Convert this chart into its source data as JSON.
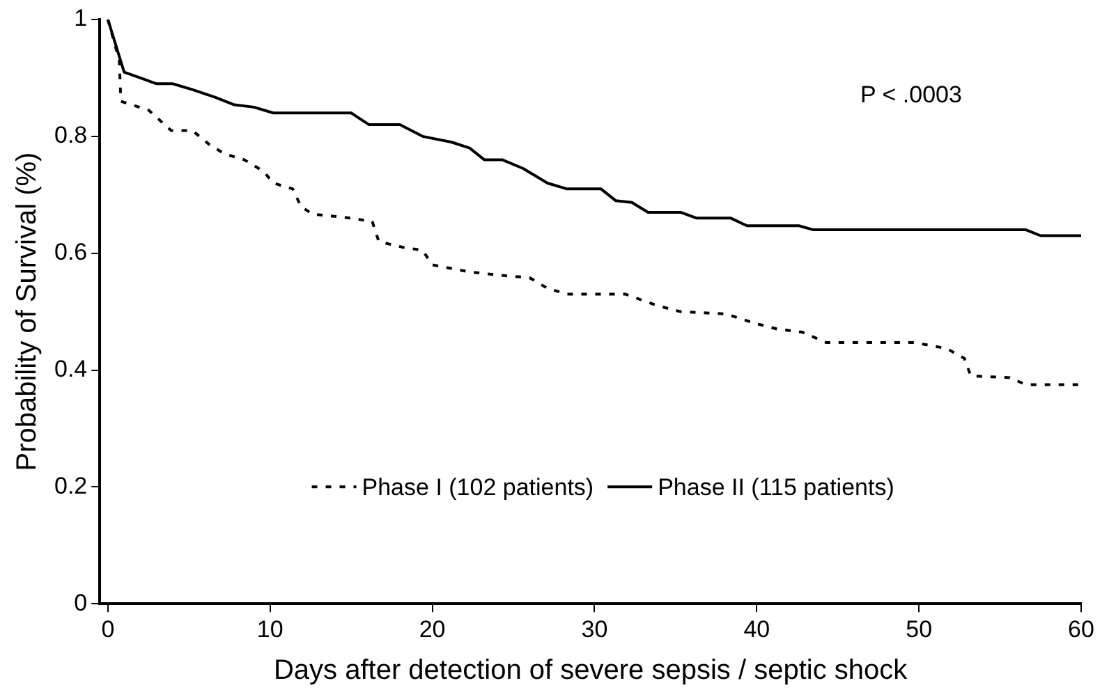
{
  "chart_data": {
    "type": "line",
    "xlabel": "Days after detection of severe sepsis / septic shock",
    "ylabel": "Probability of Survival (%)",
    "xlim": [
      -0.5,
      60
    ],
    "xticks": [
      0,
      10,
      20,
      30,
      40,
      50,
      60
    ],
    "ylim": [
      0,
      1
    ],
    "yticks": [
      0,
      0.2,
      0.4,
      0.6,
      0.8,
      1
    ],
    "grid": false,
    "legend": "bottom",
    "marker": "none",
    "annotations": [
      "P < .0003"
    ],
    "series": [
      {
        "name": "Phase I (102 patients)",
        "color": "#000000",
        "line_style": "dotted",
        "x": [
          0,
          0.7,
          0.8,
          2.5,
          3.9,
          5.2,
          6.3,
          7.2,
          8.4,
          9.6,
          10.2,
          11.4,
          11.9,
          12.6,
          15,
          16.3,
          16.7,
          18.2,
          19.4,
          20,
          22.3,
          23.9,
          26,
          27.1,
          28.3,
          31.9,
          33.9,
          35.3,
          38.1,
          39.9,
          41.3,
          42.8,
          44.3,
          49.7,
          51.7,
          52.8,
          53.2,
          55.6,
          56.6,
          60
        ],
        "values": [
          1,
          0.93,
          0.86,
          0.845,
          0.81,
          0.81,
          0.785,
          0.77,
          0.76,
          0.74,
          0.72,
          0.71,
          0.68,
          0.667,
          0.66,
          0.654,
          0.62,
          0.61,
          0.605,
          0.58,
          0.568,
          0.563,
          0.558,
          0.54,
          0.53,
          0.53,
          0.51,
          0.5,
          0.496,
          0.48,
          0.47,
          0.465,
          0.447,
          0.447,
          0.437,
          0.42,
          0.39,
          0.387,
          0.375,
          0.375
        ]
      },
      {
        "name": "Phase II (115 patients)",
        "color": "#000000",
        "line_style": "solid",
        "x": [
          0,
          1,
          2,
          3,
          4,
          5.2,
          6.6,
          7.8,
          9,
          10.2,
          15,
          16.1,
          18,
          19.4,
          21.2,
          22.3,
          23.2,
          24.3,
          25.6,
          27.1,
          28.3,
          30.4,
          31.3,
          32.3,
          33.3,
          35.3,
          36.3,
          38.4,
          39.4,
          42.6,
          43.5,
          56.6,
          57.5,
          60
        ],
        "values": [
          1,
          0.91,
          0.9,
          0.89,
          0.89,
          0.88,
          0.867,
          0.854,
          0.85,
          0.84,
          0.84,
          0.82,
          0.82,
          0.8,
          0.79,
          0.78,
          0.76,
          0.76,
          0.745,
          0.72,
          0.71,
          0.71,
          0.69,
          0.687,
          0.67,
          0.67,
          0.66,
          0.66,
          0.647,
          0.647,
          0.64,
          0.64,
          0.63,
          0.63
        ]
      }
    ]
  }
}
